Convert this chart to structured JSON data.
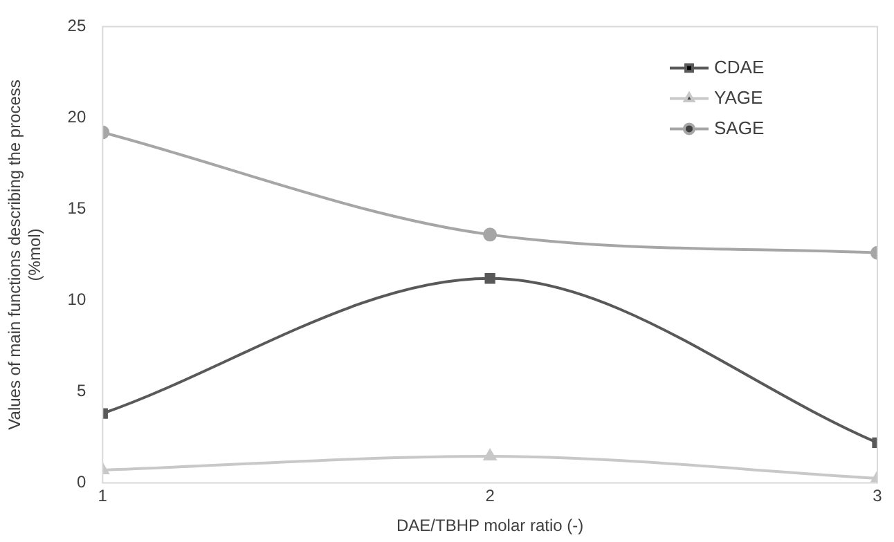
{
  "chart_data": {
    "type": "line",
    "xlabel": "DAE/TBHP molar ratio (-)",
    "ylabel": "Values of main functions describing the process\n(%mol)",
    "x": [
      1,
      2,
      3
    ],
    "xlim": [
      1,
      3
    ],
    "xticks": [
      1,
      2,
      3
    ],
    "ylim": [
      0,
      25
    ],
    "yticks": [
      0,
      5,
      10,
      15,
      20,
      25
    ],
    "grid": false,
    "legend": "top right",
    "series": [
      {
        "name": "CDAE",
        "color": "#595959",
        "marker": "square",
        "values": [
          3.8,
          11.2,
          2.2
        ]
      },
      {
        "name": "YAGE",
        "color": "#c8c8c8",
        "marker": "triangle",
        "values": [
          0.7,
          1.45,
          0.25
        ]
      },
      {
        "name": "SAGE",
        "color": "#a6a6a6",
        "marker": "circle",
        "values": [
          19.2,
          13.6,
          12.6
        ]
      }
    ]
  }
}
